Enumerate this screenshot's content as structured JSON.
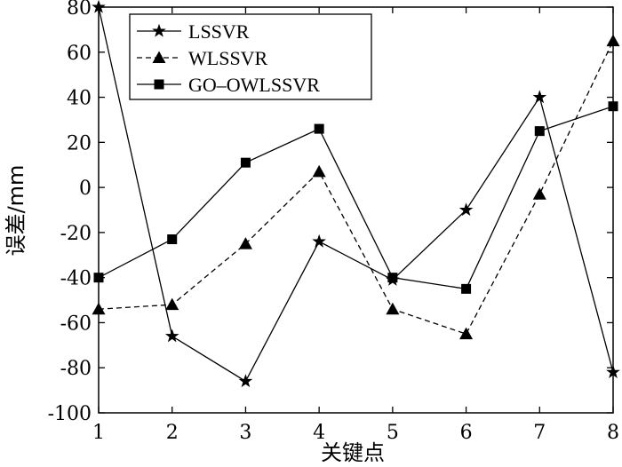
{
  "chart_data": {
    "type": "line",
    "title": "",
    "xlabel": "关键点",
    "ylabel": "误差/mm",
    "x": [
      1,
      2,
      3,
      4,
      5,
      6,
      7,
      8
    ],
    "xlim": [
      1,
      8
    ],
    "ylim": [
      -100,
      80
    ],
    "xticks": [
      1,
      2,
      3,
      4,
      5,
      6,
      7,
      8
    ],
    "yticks": [
      80,
      60,
      40,
      20,
      0,
      -20,
      -40,
      -60,
      -80,
      -100
    ],
    "grid": false,
    "legend_position": "top-left",
    "series": [
      {
        "name": "LSSVR",
        "marker": "star",
        "line": "solid",
        "values": [
          80,
          -66,
          -86,
          -24,
          -41,
          -10,
          40,
          -82
        ]
      },
      {
        "name": "WLSSVR",
        "marker": "triangle",
        "line": "dashed",
        "values": [
          -54,
          -52,
          -25,
          7,
          -54,
          -65,
          -3,
          65
        ]
      },
      {
        "name": "GO–OWLSSVR",
        "marker": "square",
        "line": "solid",
        "values": [
          -40,
          -23,
          11,
          26,
          -40,
          -45,
          25,
          36
        ]
      }
    ]
  }
}
